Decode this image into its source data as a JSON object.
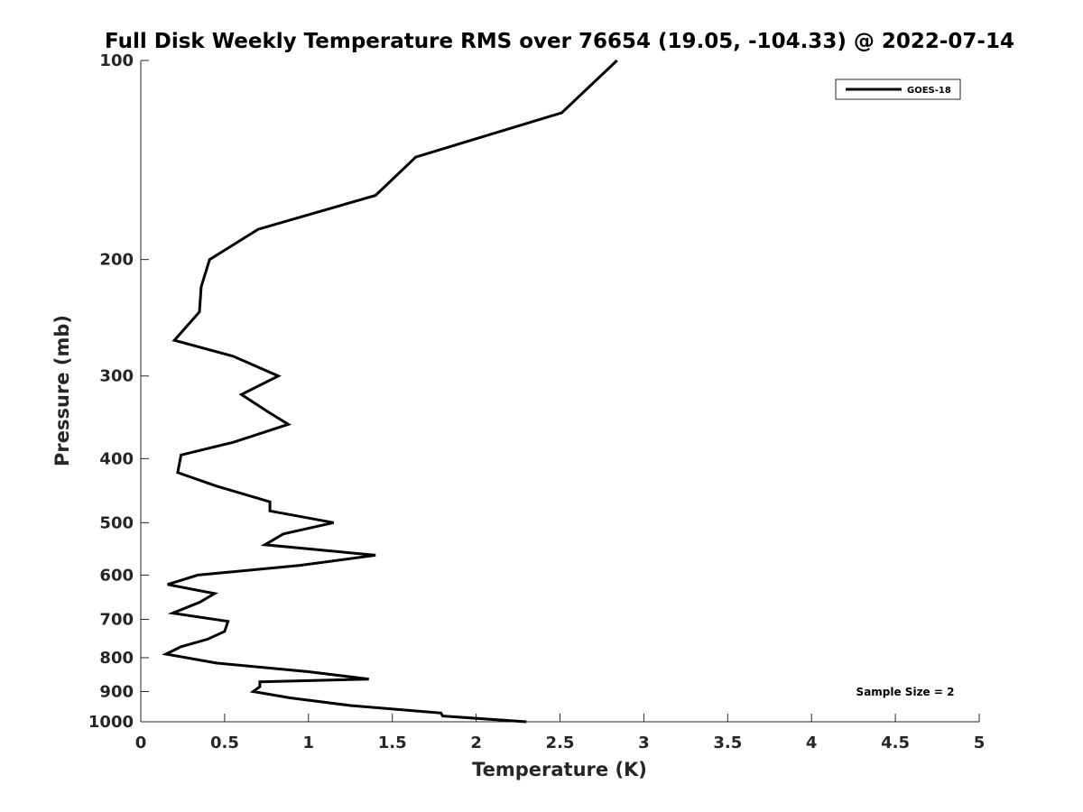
{
  "chart_data": {
    "type": "line",
    "title": "Full Disk Weekly Temperature RMS over 76654 (19.05, -104.33) @ 2022-07-14",
    "xlabel": "Temperature (K)",
    "ylabel": "Pressure (mb)",
    "xlim": [
      0,
      5
    ],
    "ylim": [
      100,
      1000
    ],
    "y_scale": "log",
    "y_reversed": true,
    "xticks": [
      "0",
      "0.5",
      "1",
      "1.5",
      "2",
      "2.5",
      "3",
      "3.5",
      "4",
      "4.5",
      "5"
    ],
    "yticks": [
      "100",
      "200",
      "300",
      "400",
      "500",
      "600",
      "700",
      "800",
      "900",
      "1000"
    ],
    "grid": false,
    "legend_position": "top-right",
    "series": [
      {
        "name": "GOES-18",
        "color": "#000000",
        "x": [
          2.84,
          2.51,
          1.64,
          1.4,
          0.7,
          0.41,
          0.36,
          0.35,
          0.2,
          0.55,
          0.82,
          0.6,
          0.76,
          0.88,
          0.55,
          0.24,
          0.22,
          0.45,
          0.77,
          0.77,
          1.15,
          0.85,
          0.74,
          1.4,
          0.95,
          0.34,
          0.16,
          0.44,
          0.35,
          0.19,
          0.52,
          0.5,
          0.4,
          0.24,
          0.15,
          0.45,
          1.0,
          1.36,
          0.71,
          0.71,
          0.67,
          0.89,
          1.25,
          1.79,
          1.8,
          2.3
        ],
        "y": [
          100,
          120,
          140,
          160,
          180,
          200,
          220,
          240,
          265,
          280,
          300,
          320,
          340,
          355,
          378,
          395,
          420,
          440,
          465,
          480,
          500,
          520,
          540,
          560,
          580,
          600,
          620,
          640,
          660,
          685,
          705,
          730,
          750,
          770,
          790,
          815,
          840,
          862,
          870,
          885,
          900,
          920,
          945,
          970,
          980,
          1000
        ]
      }
    ],
    "annotations": [
      "Sample Size = 2"
    ]
  }
}
